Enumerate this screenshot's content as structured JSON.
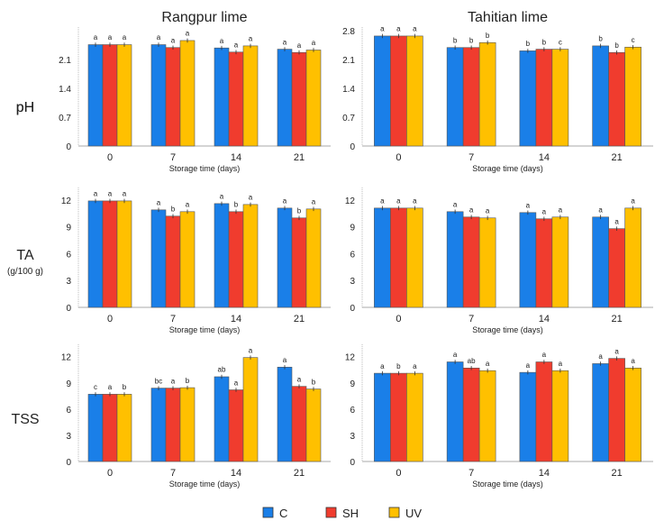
{
  "chart_data": [
    {
      "type": "bar",
      "title": "Rangpur lime",
      "row_label": "pH",
      "xlabel": "Storage time (days)",
      "categories": [
        "0",
        "7",
        "14",
        "21"
      ],
      "ylim": [
        0,
        2.8
      ],
      "yticks": [
        "0",
        "0.7",
        "1.4",
        "2.1"
      ],
      "series": [
        {
          "name": "C",
          "values": [
            2.46,
            2.46,
            2.38,
            2.35
          ],
          "letters": [
            "a",
            "a",
            "a",
            "a"
          ]
        },
        {
          "name": "SH",
          "values": [
            2.46,
            2.39,
            2.28,
            2.27
          ],
          "letters": [
            "a",
            "a",
            "a",
            "a"
          ]
        },
        {
          "name": "UV",
          "values": [
            2.46,
            2.56,
            2.43,
            2.33
          ],
          "letters": [
            "a",
            "a",
            "a",
            "a"
          ]
        }
      ]
    },
    {
      "type": "bar",
      "title": "Tahitian lime",
      "row_label": "pH",
      "xlabel": "Storage time (days)",
      "categories": [
        "0",
        "7",
        "14",
        "21"
      ],
      "ylim": [
        0,
        2.8
      ],
      "yticks": [
        "0",
        "0.7",
        "1.4",
        "2.1",
        "2.8"
      ],
      "series": [
        {
          "name": "C",
          "values": [
            2.67,
            2.39,
            2.31,
            2.43
          ],
          "letters": [
            "a",
            "b",
            "b",
            "b"
          ]
        },
        {
          "name": "SH",
          "values": [
            2.67,
            2.39,
            2.35,
            2.27
          ],
          "letters": [
            "a",
            "b",
            "b",
            "b"
          ]
        },
        {
          "name": "UV",
          "values": [
            2.67,
            2.51,
            2.35,
            2.4
          ],
          "letters": [
            "a",
            "b",
            "c",
            "c"
          ]
        }
      ]
    },
    {
      "type": "bar",
      "row_label": "TA",
      "row_sublabel": "(g/100 g)",
      "xlabel": "Storage time (days)",
      "categories": [
        "0",
        "7",
        "14",
        "21"
      ],
      "ylim": [
        0,
        13
      ],
      "yticks": [
        "0",
        "3",
        "6",
        "9",
        "12"
      ],
      "series": [
        {
          "name": "C",
          "values": [
            11.9,
            10.9,
            11.6,
            11.1
          ],
          "letters": [
            "a",
            "a",
            "a",
            "a"
          ]
        },
        {
          "name": "SH",
          "values": [
            11.9,
            10.2,
            10.7,
            10.0
          ],
          "letters": [
            "a",
            "b",
            "b",
            "b"
          ]
        },
        {
          "name": "UV",
          "values": [
            11.9,
            10.7,
            11.5,
            11.0
          ],
          "letters": [
            "a",
            "a",
            "a",
            "a"
          ]
        }
      ]
    },
    {
      "type": "bar",
      "xlabel": "Storage time (days)",
      "categories": [
        "0",
        "7",
        "14",
        "21"
      ],
      "ylim": [
        0,
        13
      ],
      "yticks": [
        "0",
        "3",
        "6",
        "9",
        "12"
      ],
      "series": [
        {
          "name": "C",
          "values": [
            11.1,
            10.7,
            10.6,
            10.1
          ],
          "letters": [
            "a",
            "a",
            "a",
            "a"
          ]
        },
        {
          "name": "SH",
          "values": [
            11.1,
            10.1,
            9.9,
            8.8
          ],
          "letters": [
            "a",
            "a",
            "a",
            "a"
          ]
        },
        {
          "name": "UV",
          "values": [
            11.1,
            10.0,
            10.1,
            11.1
          ],
          "letters": [
            "a",
            "a",
            "a",
            "a"
          ]
        }
      ]
    },
    {
      "type": "bar",
      "row_label": "TSS",
      "xlabel": "Storage time (days)",
      "categories": [
        "0",
        "7",
        "14",
        "21"
      ],
      "ylim": [
        0,
        13
      ],
      "yticks": [
        "0",
        "3",
        "6",
        "9",
        "12"
      ],
      "series": [
        {
          "name": "C",
          "values": [
            7.7,
            8.4,
            9.7,
            10.8
          ],
          "letters": [
            "c",
            "bc",
            "ab",
            "a"
          ]
        },
        {
          "name": "SH",
          "values": [
            7.7,
            8.4,
            8.2,
            8.6
          ],
          "letters": [
            "a",
            "a",
            "a",
            "a"
          ]
        },
        {
          "name": "UV",
          "values": [
            7.7,
            8.45,
            11.9,
            8.3
          ],
          "letters": [
            "b",
            "b",
            "a",
            "b"
          ]
        }
      ]
    },
    {
      "type": "bar",
      "xlabel": "Storage time (days)",
      "categories": [
        "0",
        "7",
        "14",
        "21"
      ],
      "ylim": [
        0,
        13
      ],
      "yticks": [
        "0",
        "3",
        "6",
        "9",
        "12"
      ],
      "series": [
        {
          "name": "C",
          "values": [
            10.1,
            11.4,
            10.2,
            11.2
          ],
          "letters": [
            "a",
            "a",
            "a",
            "a"
          ]
        },
        {
          "name": "SH",
          "values": [
            10.1,
            10.7,
            11.4,
            11.8
          ],
          "letters": [
            "b",
            "ab",
            "a",
            "a"
          ]
        },
        {
          "name": "UV",
          "values": [
            10.1,
            10.4,
            10.4,
            10.7
          ],
          "letters": [
            "a",
            "a",
            "a",
            "a"
          ]
        }
      ]
    }
  ],
  "legend": [
    {
      "name": "C",
      "color": "#1a7fe8"
    },
    {
      "name": "SH",
      "color": "#f03c2e"
    },
    {
      "name": "UV",
      "color": "#ffc000"
    }
  ],
  "legend_placement": "bottom",
  "grid": false
}
